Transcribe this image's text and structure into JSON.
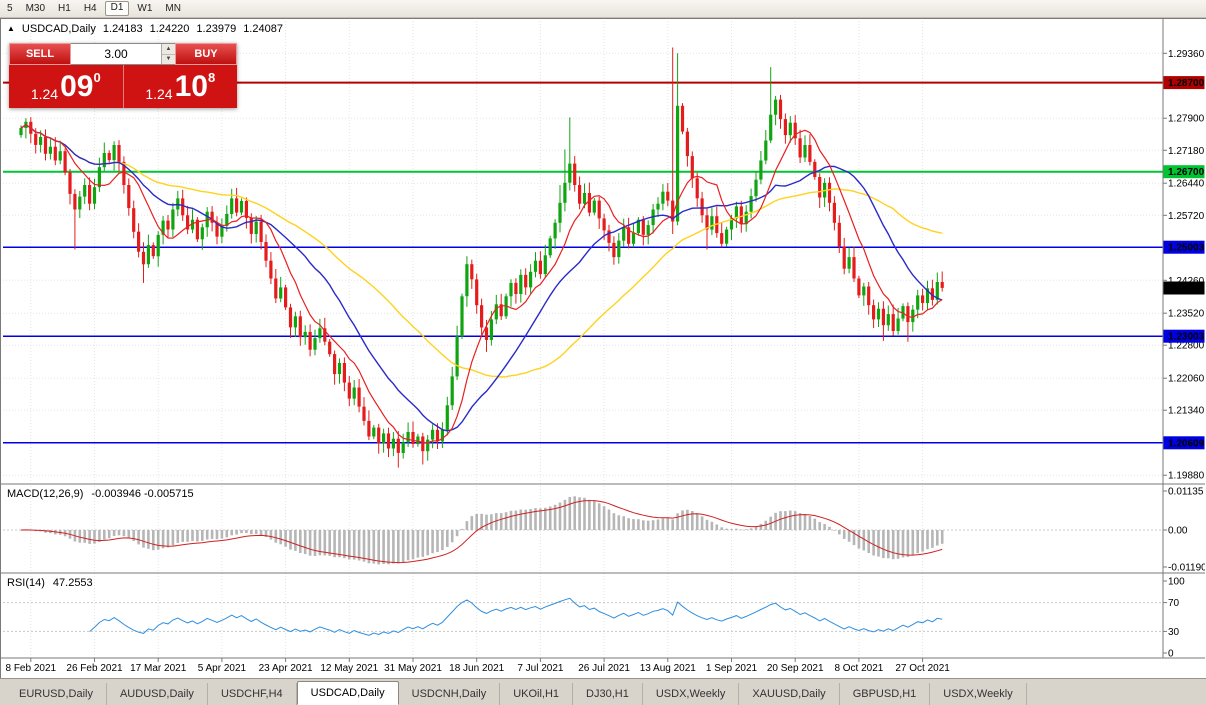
{
  "timeframes": {
    "items": [
      {
        "label": "5",
        "active": false
      },
      {
        "label": "M30",
        "active": false
      },
      {
        "label": "H1",
        "active": false
      },
      {
        "label": "H4",
        "active": false
      },
      {
        "label": "D1",
        "active": true
      },
      {
        "label": "W1",
        "active": false
      },
      {
        "label": "MN",
        "active": false
      }
    ]
  },
  "title": {
    "marker": "▲",
    "symbol": "USDCAD,Daily",
    "open": "1.24183",
    "high": "1.24220",
    "low": "1.23979",
    "close": "1.24087"
  },
  "trade_panel": {
    "sell_label": "SELL",
    "buy_label": "BUY",
    "volume": "3.00",
    "spin_up": "▲",
    "spin_down": "▼",
    "sell_price": {
      "base": "1.24",
      "big": "09",
      "sup": "0"
    },
    "buy_price": {
      "base": "1.24",
      "big": "10",
      "sup": "8"
    }
  },
  "indicators": {
    "macd": {
      "name": "MACD(12,26,9)",
      "values": "-0.003946 -0.005715",
      "axis": [
        "0.01135",
        "0.00",
        "-0.01190"
      ]
    },
    "rsi": {
      "name": "RSI(14)",
      "value": "47.2553",
      "axis": [
        "100",
        "70",
        "30",
        "0"
      ],
      "levels": [
        70,
        30
      ]
    }
  },
  "tabs": [
    {
      "label": "EURUSD,Daily",
      "active": false
    },
    {
      "label": "AUDUSD,Daily",
      "active": false
    },
    {
      "label": "USDCHF,H4",
      "active": false
    },
    {
      "label": "USDCAD,Daily",
      "active": true
    },
    {
      "label": "USDCNH,Daily",
      "active": false
    },
    {
      "label": "UKOil,H1",
      "active": false
    },
    {
      "label": "DJ30,H1",
      "active": false
    },
    {
      "label": "USDX,Weekly",
      "active": false
    },
    {
      "label": "XAUUSD,Daily",
      "active": false
    },
    {
      "label": "GBPUSD,H1",
      "active": false
    },
    {
      "label": "USDX,Weekly",
      "active": false
    }
  ],
  "chart_data": {
    "type": "candlestick",
    "symbol": "USDCAD",
    "timeframe": "Daily",
    "price_range": [
      1.1975,
      1.2995
    ],
    "first_open": 1.2752,
    "closes": [
      1.2768,
      1.2782,
      1.2755,
      1.273,
      1.2748,
      1.271,
      1.2726,
      1.2695,
      1.2716,
      1.2668,
      1.262,
      1.2585,
      1.2614,
      1.264,
      1.2598,
      1.2635,
      1.268,
      1.2712,
      1.2696,
      1.273,
      1.2692,
      1.264,
      1.2588,
      1.2535,
      1.249,
      1.2462,
      1.2505,
      1.248,
      1.2528,
      1.256,
      1.254,
      1.2585,
      1.261,
      1.2572,
      1.254,
      1.2562,
      1.2518,
      1.2545,
      1.258,
      1.2555,
      1.2524,
      1.2548,
      1.2575,
      1.261,
      1.2578,
      1.2604,
      1.2566,
      1.253,
      1.2558,
      1.2512,
      1.247,
      1.243,
      1.2385,
      1.241,
      1.2365,
      1.232,
      1.2345,
      1.2298,
      1.231,
      1.227,
      1.2296,
      1.2318,
      1.2288,
      1.226,
      1.2215,
      1.224,
      1.2196,
      1.216,
      1.2185,
      1.2142,
      1.211,
      1.2075,
      1.2095,
      1.206,
      1.2082,
      1.2048,
      1.207,
      1.2038,
      1.2062,
      1.2085,
      1.2058,
      1.2075,
      1.2042,
      1.2068,
      1.209,
      1.2064,
      1.209,
      1.2145,
      1.221,
      1.23,
      1.239,
      1.2462,
      1.2428,
      1.237,
      1.232,
      1.2292,
      1.2338,
      1.2372,
      1.2345,
      1.239,
      1.242,
      1.2395,
      1.2438,
      1.241,
      1.2445,
      1.247,
      1.244,
      1.2482,
      1.252,
      1.2555,
      1.26,
      1.2645,
      1.2688,
      1.264,
      1.2598,
      1.2622,
      1.2578,
      1.2605,
      1.2565,
      1.2538,
      1.251,
      1.2478,
      1.2515,
      1.2545,
      1.2508,
      1.2532,
      1.2562,
      1.2528,
      1.255,
      1.2585,
      1.2598,
      1.2625,
      1.2605,
      1.2558,
      1.2818,
      1.276,
      1.2705,
      1.2655,
      1.261,
      1.2572,
      1.254,
      1.257,
      1.2532,
      1.2508,
      1.254,
      1.2565,
      1.2592,
      1.2552,
      1.258,
      1.2615,
      1.2652,
      1.2695,
      1.274,
      1.2798,
      1.2832,
      1.2788,
      1.2752,
      1.278,
      1.2745,
      1.2702,
      1.273,
      1.2692,
      1.2658,
      1.2612,
      1.2645,
      1.26,
      1.2555,
      1.2502,
      1.2452,
      1.2478,
      1.243,
      1.2392,
      1.2412,
      1.237,
      1.2338,
      1.2362,
      1.2325,
      1.235,
      1.2312,
      1.234,
      1.2368,
      1.2332,
      1.236,
      1.2392,
      1.2375,
      1.2408,
      1.2382,
      1.2422,
      1.24087
    ],
    "spikes": {
      "11": {
        "l": 1.2495
      },
      "25": {
        "l": 1.242
      },
      "77": {
        "l": 1.2005
      },
      "82": {
        "l": 1.2012
      },
      "91": {
        "h": 1.248
      },
      "95": {
        "l": 1.2265
      },
      "110": {
        "h": 1.264
      },
      "111": {
        "h": 1.272
      },
      "112": {
        "h": 1.2792
      },
      "133": {
        "h": 1.2949,
        "l": 1.253
      },
      "134": {
        "h": 1.2936
      },
      "140": {
        "l": 1.2495
      },
      "153": {
        "h": 1.2905
      },
      "176": {
        "l": 1.229
      },
      "181": {
        "l": 1.2288
      }
    },
    "ma": [
      {
        "period": 45,
        "color": "#FFD21E",
        "width": 1.4
      },
      {
        "period": 21,
        "color": "#2A2AC8",
        "width": 1.4
      },
      {
        "period": 9,
        "color": "#E82020",
        "width": 1.2
      }
    ],
    "macd_params": [
      12,
      26,
      9
    ],
    "rsi_period": 14,
    "colors": {
      "bull": "#10A510",
      "bear": "#E51C1C",
      "macd_hist": "#B6B6B6",
      "macd_signal": "#D02020",
      "rsi_line": "#2F8FE0"
    },
    "price_ticks": [
      {
        "label": "1.29360",
        "value": 1.2936
      },
      {
        "label": "1.27900",
        "value": 1.279
      },
      {
        "label": "1.27180",
        "value": 1.2718
      },
      {
        "label": "1.26440",
        "value": 1.2644
      },
      {
        "label": "1.25720",
        "value": 1.2572
      },
      {
        "label": "1.24260",
        "value": 1.2426
      },
      {
        "label": "1.23520",
        "value": 1.2352
      },
      {
        "label": "1.22800",
        "value": 1.228
      },
      {
        "label": "1.22060",
        "value": 1.2206
      },
      {
        "label": "1.21340",
        "value": 1.2134
      },
      {
        "label": "1.19880",
        "value": 1.1988
      }
    ],
    "hlines": [
      {
        "label": "1.28700",
        "value": 1.287,
        "color": "#B00000",
        "width": 2
      },
      {
        "label": "1.26700",
        "value": 1.267,
        "color": "#00C431",
        "width": 2
      },
      {
        "label": "1.25003",
        "value": 1.25003,
        "color": "#0000E0",
        "width": 1.5
      },
      {
        "label": "1.23003",
        "value": 1.23003,
        "color": "#0000E0",
        "width": 1.5
      },
      {
        "label": "1.20609",
        "value": 1.20609,
        "color": "#0000E0",
        "width": 1.5
      }
    ],
    "current_price": {
      "label": "1.24087",
      "value": 1.24087,
      "color": "#000000"
    },
    "date_labels": [
      "8 Feb 2021",
      "26 Feb 2021",
      "17 Mar 2021",
      "5 Apr 2021",
      "23 Apr 2021",
      "12 May 2021",
      "31 May 2021",
      "18 Jun 2021",
      "7 Jul 2021",
      "26 Jul 2021",
      "13 Aug 2021",
      "1 Sep 2021",
      "20 Sep 2021",
      "8 Oct 2021",
      "27 Oct 2021"
    ],
    "first_label_index": 2,
    "label_step": 13
  }
}
